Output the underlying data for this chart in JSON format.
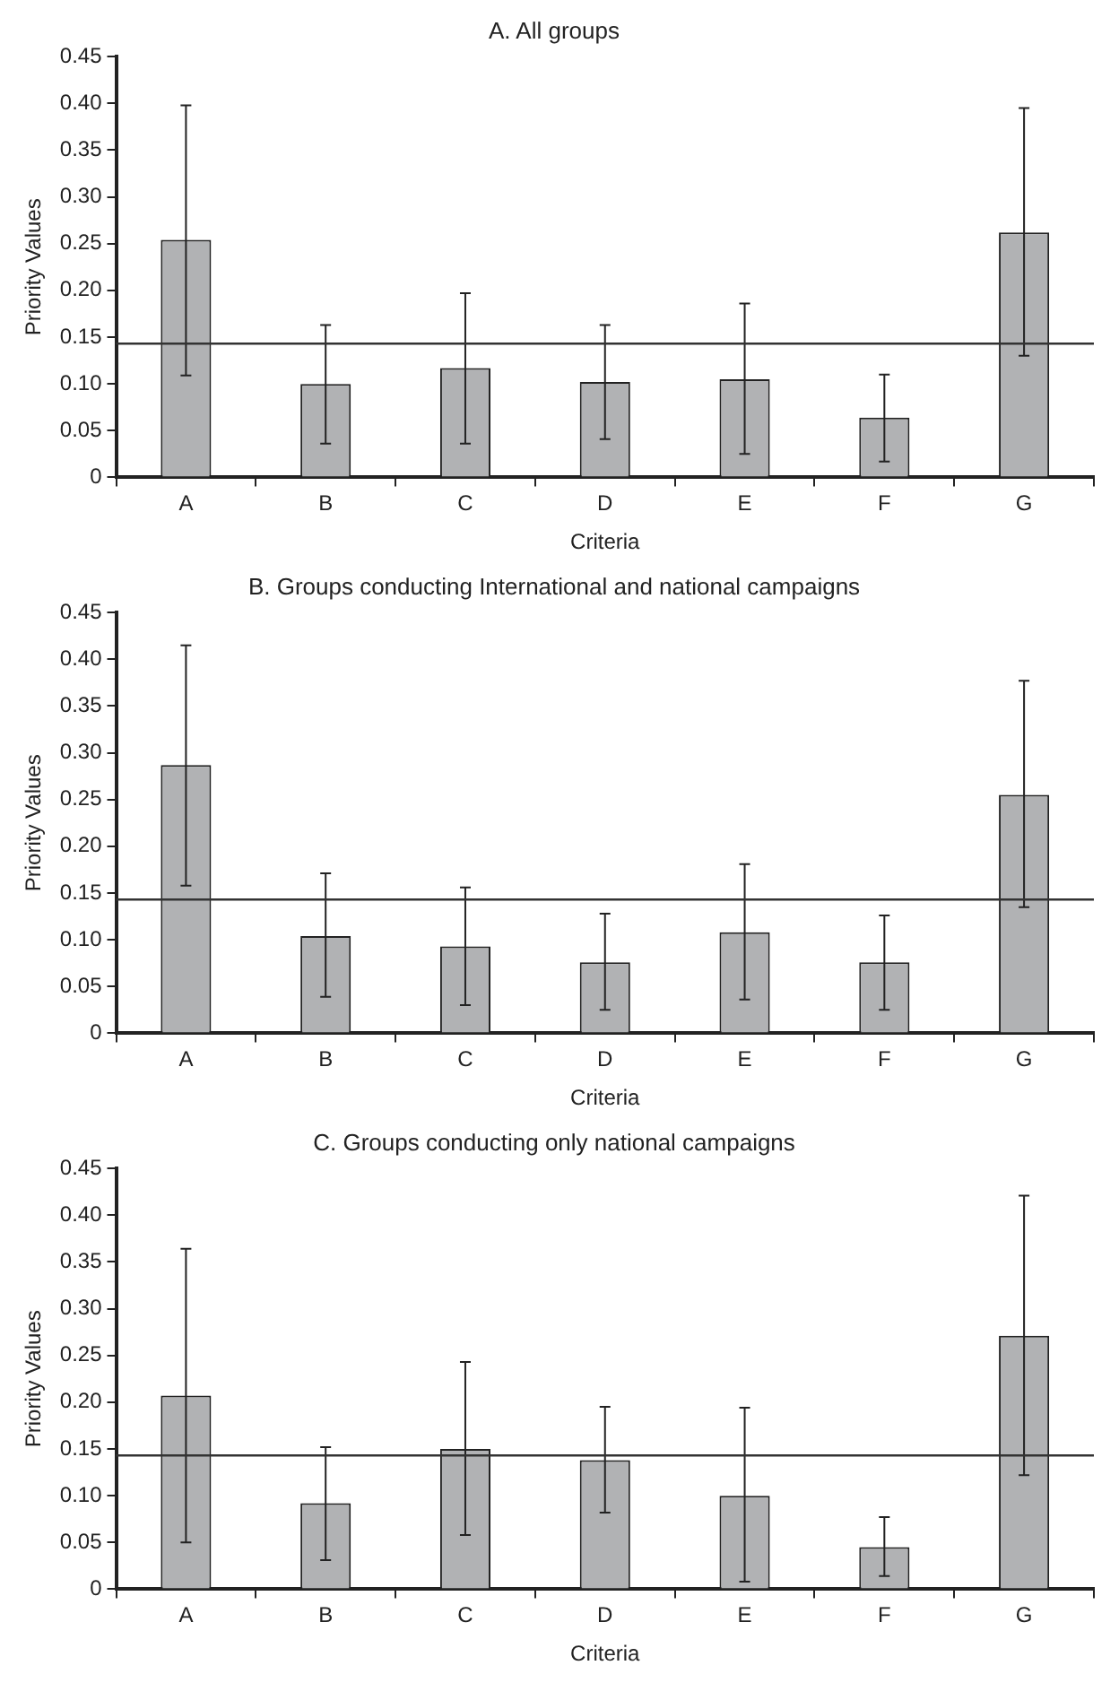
{
  "chart_data": [
    {
      "type": "bar",
      "title": "A. All groups",
      "xlabel": "Criteria",
      "ylabel": "Priority Values",
      "categories": [
        "A",
        "B",
        "C",
        "D",
        "E",
        "F",
        "G"
      ],
      "values": [
        0.254,
        0.1,
        0.117,
        0.102,
        0.105,
        0.064,
        0.262
      ],
      "color": "#b1b2b4",
      "errors": [
        [
          0.109,
          0.398
        ],
        [
          0.036,
          0.163
        ],
        [
          0.036,
          0.197
        ],
        [
          0.041,
          0.163
        ],
        [
          0.025,
          0.186
        ],
        [
          0.017,
          0.11
        ],
        [
          0.13,
          0.395
        ]
      ],
      "ylim": [
        0,
        0.45
      ],
      "yticks": [
        {
          "value": 0,
          "label": "0"
        },
        {
          "value": 0.05,
          "label": "0.05"
        },
        {
          "value": 0.1,
          "label": "0.10"
        },
        {
          "value": 0.15,
          "label": "0.15"
        },
        {
          "value": 0.2,
          "label": "0.20"
        },
        {
          "value": 0.25,
          "label": "0.25"
        },
        {
          "value": 0.3,
          "label": "0.30"
        },
        {
          "value": 0.35,
          "label": "0.35"
        },
        {
          "value": 0.4,
          "label": "0.40"
        },
        {
          "value": 0.45,
          "label": "0.45"
        }
      ],
      "ref_lines": [
        {
          "axis": "y",
          "value": 0.143,
          "color": "#333333"
        }
      ],
      "grid": false,
      "legend": false
    },
    {
      "type": "bar",
      "title": "B. Groups conducting International and national campaigns",
      "xlabel": "Criteria",
      "ylabel": "Priority Values",
      "categories": [
        "A",
        "B",
        "C",
        "D",
        "E",
        "F",
        "G"
      ],
      "values": [
        0.287,
        0.104,
        0.093,
        0.076,
        0.108,
        0.076,
        0.255
      ],
      "color": "#b1b2b4",
      "errors": [
        [
          0.158,
          0.415
        ],
        [
          0.039,
          0.171
        ],
        [
          0.03,
          0.156
        ],
        [
          0.025,
          0.128
        ],
        [
          0.036,
          0.181
        ],
        [
          0.025,
          0.126
        ],
        [
          0.135,
          0.377
        ]
      ],
      "ylim": [
        0,
        0.45
      ],
      "yticks": [
        {
          "value": 0,
          "label": "0"
        },
        {
          "value": 0.05,
          "label": "0.05"
        },
        {
          "value": 0.1,
          "label": "0.10"
        },
        {
          "value": 0.15,
          "label": "0.15"
        },
        {
          "value": 0.2,
          "label": "0.20"
        },
        {
          "value": 0.25,
          "label": "0.25"
        },
        {
          "value": 0.3,
          "label": "0.30"
        },
        {
          "value": 0.35,
          "label": "0.35"
        },
        {
          "value": 0.4,
          "label": "0.40"
        },
        {
          "value": 0.45,
          "label": "0.45"
        }
      ],
      "ref_lines": [
        {
          "axis": "y",
          "value": 0.143,
          "color": "#333333"
        }
      ],
      "grid": false,
      "legend": false
    },
    {
      "type": "bar",
      "title": "C. Groups conducting only national campaigns",
      "xlabel": "Criteria",
      "ylabel": "Priority Values",
      "categories": [
        "A",
        "B",
        "C",
        "D",
        "E",
        "F",
        "G"
      ],
      "values": [
        0.207,
        0.092,
        0.15,
        0.138,
        0.1,
        0.045,
        0.271
      ],
      "color": "#b1b2b4",
      "errors": [
        [
          0.05,
          0.364
        ],
        [
          0.031,
          0.152
        ],
        [
          0.058,
          0.243
        ],
        [
          0.082,
          0.195
        ],
        [
          0.008,
          0.194
        ],
        [
          0.014,
          0.077
        ],
        [
          0.122,
          0.421
        ]
      ],
      "ylim": [
        0,
        0.45
      ],
      "yticks": [
        {
          "value": 0,
          "label": "0"
        },
        {
          "value": 0.05,
          "label": "0.05"
        },
        {
          "value": 0.1,
          "label": "0.10"
        },
        {
          "value": 0.15,
          "label": "0.15"
        },
        {
          "value": 0.2,
          "label": "0.20"
        },
        {
          "value": 0.25,
          "label": "0.25"
        },
        {
          "value": 0.3,
          "label": "0.30"
        },
        {
          "value": 0.35,
          "label": "0.35"
        },
        {
          "value": 0.4,
          "label": "0.40"
        },
        {
          "value": 0.45,
          "label": "0.45"
        }
      ],
      "ref_lines": [
        {
          "axis": "y",
          "value": 0.143,
          "color": "#333333"
        }
      ],
      "grid": false,
      "legend": false
    }
  ]
}
